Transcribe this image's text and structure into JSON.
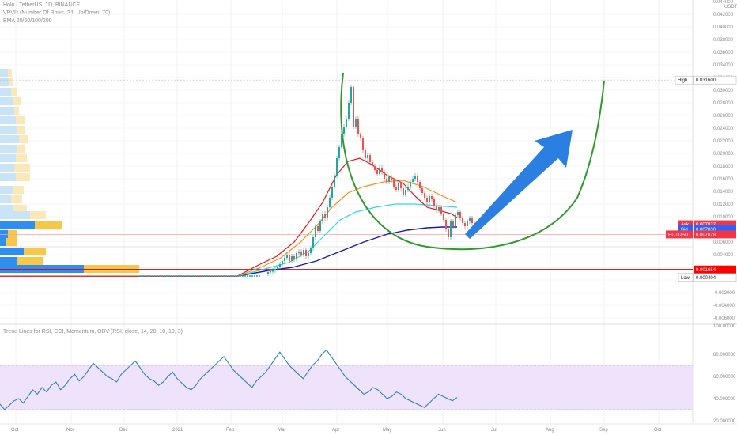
{
  "header": {
    "symbol_line": "Holo / TetherUS, 1D, BINANCE",
    "vpvr_line": "VPVR (Number Of Rows, 24, Up/Down, 70)",
    "ema_line": "EMA 20/50/100/200",
    "indicator_line": "Trend Lines for RSI, CCI, Momentum, OBV (RSI, close, 14, 20, 10, 10, 3)"
  },
  "price_axis": {
    "currency": "USDT",
    "ticks": [
      "0.042000",
      "0.040000",
      "0.038000",
      "0.036000",
      "0.034000",
      "0.032000",
      "0.030000",
      "0.028000",
      "0.026000",
      "0.024000",
      "0.022000",
      "0.020000",
      "0.018000",
      "0.016000",
      "0.014000",
      "0.012000",
      "0.010000",
      "0.008000",
      "0.006000",
      "0.004000",
      "0.002000",
      "0.000000",
      "-0.002000",
      "-0.004000",
      "-0.006000"
    ],
    "truncated_top": "0.044000",
    "truncated_mid": "100.00000"
  },
  "rsi_axis": {
    "ticks": [
      "80.000000",
      "60.000000",
      "40.000000",
      "20.000000"
    ]
  },
  "tags": [
    {
      "label": "High",
      "value": "0.031600",
      "price": 0.0316,
      "color": "#ffffff",
      "text": "#131722",
      "border": "#b0b0b0"
    },
    {
      "label": "Ask",
      "value": "0.007837",
      "price": 0.0088,
      "color": "#f23645",
      "text": "#ffffff"
    },
    {
      "label": "Bid",
      "value": "0.007830",
      "price": 0.008,
      "color": "#2962ff",
      "text": "#ffffff"
    },
    {
      "label": "HOTUSDT",
      "value": "0.007828",
      "price": 0.0072,
      "color": "#f23645",
      "text": "#ffffff"
    },
    {
      "label": "",
      "value": "0.001654",
      "price": 0.001654,
      "color": "#ff0000",
      "text": "#ffffff"
    },
    {
      "label": "Low",
      "value": "0.000404",
      "price": 0.000404,
      "color": "#ffffff",
      "text": "#131722",
      "border": "#b0b0b0"
    }
  ],
  "time_axis": [
    "Oct",
    "Nov",
    "Dec",
    "2021",
    "Feb",
    "Mar",
    "Apr",
    "May",
    "Jun",
    "Jul",
    "Aug",
    "Sep",
    "Oct"
  ],
  "colors": {
    "ema20": "#e31a1c",
    "ema50": "#ff8c1a",
    "ema100": "#33d6e6",
    "ema200": "#1a1ab3",
    "bull": "#26a69a",
    "bear": "#ef5350",
    "rsi": "#2c7fc8",
    "rsi_band": "#efe3fb",
    "curve": "#2e9a2e",
    "arrow": "#2b7fe0",
    "support": "#e00000"
  },
  "chart_data": [
    {
      "type": "line",
      "panel": "price",
      "title": "Holo / TetherUS, 1D, BINANCE",
      "ylim": [
        -0.006,
        0.044
      ],
      "x": [
        "2020-10",
        "2020-11",
        "2020-12",
        "2021-01",
        "2021-02",
        "2021-03-15",
        "2021-03-25",
        "2021-04-05",
        "2021-04-15",
        "2021-04-25",
        "2021-05-05",
        "2021-05-15",
        "2021-05-25",
        "2021-06-05"
      ],
      "series": [
        {
          "name": "close",
          "values": [
            0.0006,
            0.0006,
            0.0005,
            0.0006,
            0.0008,
            0.003,
            0.008,
            0.023,
            0.018,
            0.014,
            0.015,
            0.011,
            0.008,
            0.0078
          ]
        },
        {
          "name": "EMA 20",
          "values": [
            0.0006,
            0.0006,
            0.0005,
            0.0006,
            0.0008,
            0.0025,
            0.006,
            0.014,
            0.0185,
            0.016,
            0.0145,
            0.012,
            0.0095,
            0.0088
          ]
        },
        {
          "name": "EMA 50",
          "values": [
            0.0006,
            0.0006,
            0.0005,
            0.0006,
            0.0008,
            0.0018,
            0.0035,
            0.0075,
            0.011,
            0.013,
            0.0135,
            0.013,
            0.0115,
            0.0105
          ]
        },
        {
          "name": "EMA 100",
          "values": [
            0.0006,
            0.0006,
            0.0005,
            0.0006,
            0.0007,
            0.0012,
            0.0022,
            0.0045,
            0.007,
            0.009,
            0.01,
            0.0105,
            0.0102,
            0.0097
          ]
        },
        {
          "name": "EMA 200",
          "values": [
            0.0006,
            0.0006,
            0.0005,
            0.0006,
            0.0006,
            0.0009,
            0.0014,
            0.0025,
            0.004,
            0.0055,
            0.0065,
            0.0072,
            0.0076,
            0.0078
          ]
        }
      ],
      "high": 0.0316,
      "low": 0.000404,
      "support_line": 0.001654
    },
    {
      "type": "line",
      "panel": "indicator",
      "title": "RSI",
      "ylim": [
        20,
        100
      ],
      "band": [
        30,
        70
      ],
      "x": [
        "Oct",
        "Nov",
        "Dec",
        "2021",
        "Feb",
        "Mar",
        "Apr",
        "May",
        "Jun"
      ],
      "series": [
        {
          "name": "RSI",
          "values": [
            35,
            52,
            65,
            60,
            55,
            70,
            78,
            50,
            40
          ]
        }
      ]
    }
  ]
}
